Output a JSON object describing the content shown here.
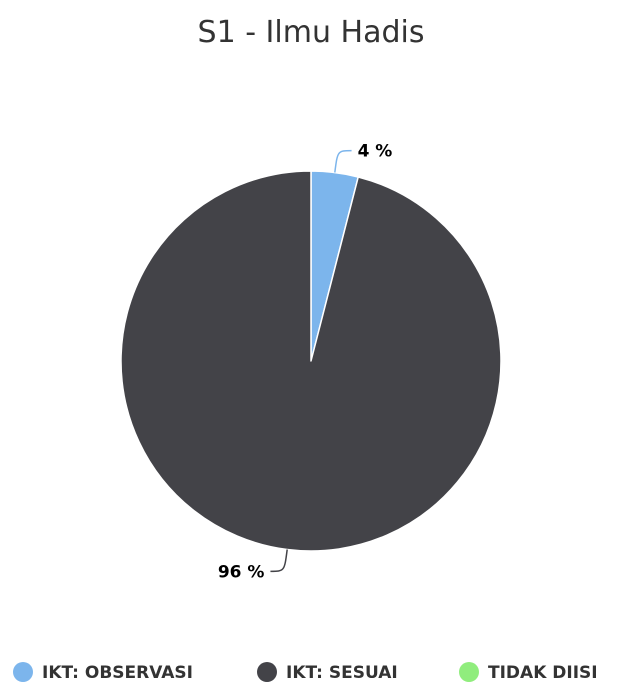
{
  "chart_data": {
    "type": "pie",
    "title": "S1 - Ilmu Hadis",
    "legend_position": "bottom",
    "slices": [
      {
        "name": "IKT: OBSERVASI",
        "value": 4,
        "label": "4 %",
        "color": "#7cb5ec"
      },
      {
        "name": "IKT: SESUAI",
        "value": 96,
        "label": "96 %",
        "color": "#434348"
      },
      {
        "name": "TIDAK DIISI",
        "value": 0,
        "label": "",
        "color": "#90ed7d"
      }
    ]
  }
}
